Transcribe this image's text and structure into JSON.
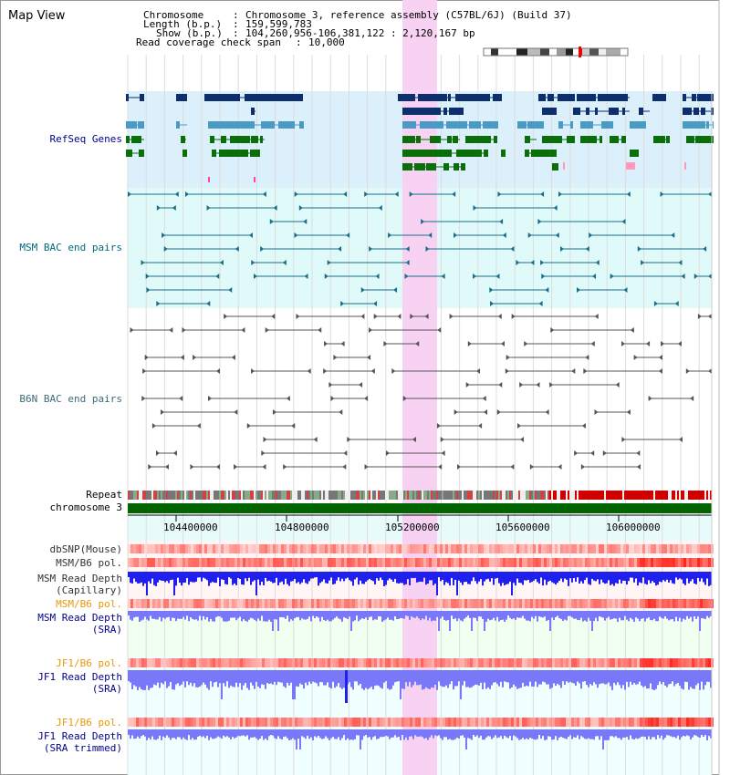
{
  "header": {
    "title": "Map View",
    "chromosome_label": "Chromosome",
    "chromosome_value": "Chromosome 3, reference assembly (C57BL/6J) (Build 37)",
    "length_label": "Length (b.p.)",
    "length_value": "159,599,783",
    "show_label": "Show (b.p.)",
    "show_value": "104,260,956-106,381,122 : 2,120,167 bp",
    "coverage_label": "Read coverage check span",
    "coverage_value": "10,000"
  },
  "tracks": {
    "refseq": "RefSeq Genes",
    "msm_bac": "MSM BAC end pairs",
    "b6n_bac": "B6N BAC end pairs",
    "repeat": "Repeat",
    "chromosome": "chromosome 3",
    "dbsnp": "dbSNP(Mouse)",
    "msm_b6_pol_1": "MSM/B6 pol.",
    "msm_depth_cap_1": "MSM Read Depth",
    "msm_depth_cap_2": "(Capillary)",
    "msm_b6_pol_2": "MSM/B6 pol.",
    "msm_depth_sra_1": "MSM Read Depth",
    "msm_depth_sra_2": "(SRA)",
    "jf1_b6_pol_1": "JF1/B6 pol.",
    "jf1_depth_sra_1": "JF1 Read Depth",
    "jf1_depth_sra_2": "(SRA)",
    "jf1_b6_pol_2": "JF1/B6 pol.",
    "jf1_depth_trim_1": "JF1 Read Depth",
    "jf1_depth_trim_2": "(SRA trimmed)"
  },
  "axis_ticks": [
    "104400000",
    "104800000",
    "105200000",
    "105600000",
    "106000000"
  ],
  "colors": {
    "refseq_bg": "#dbf0fa",
    "bac_bg": "#e0fafa",
    "highlight": "#f8d8f4",
    "gene_dark": "#0d2f6e",
    "gene_mid": "#4a9ac4",
    "gene_green": "#0a6e0a",
    "msm_bac": "#1a6e88",
    "b6n_bac": "#555555",
    "depth_blue": "#2020ee",
    "depth_light": "#7878f8"
  }
}
